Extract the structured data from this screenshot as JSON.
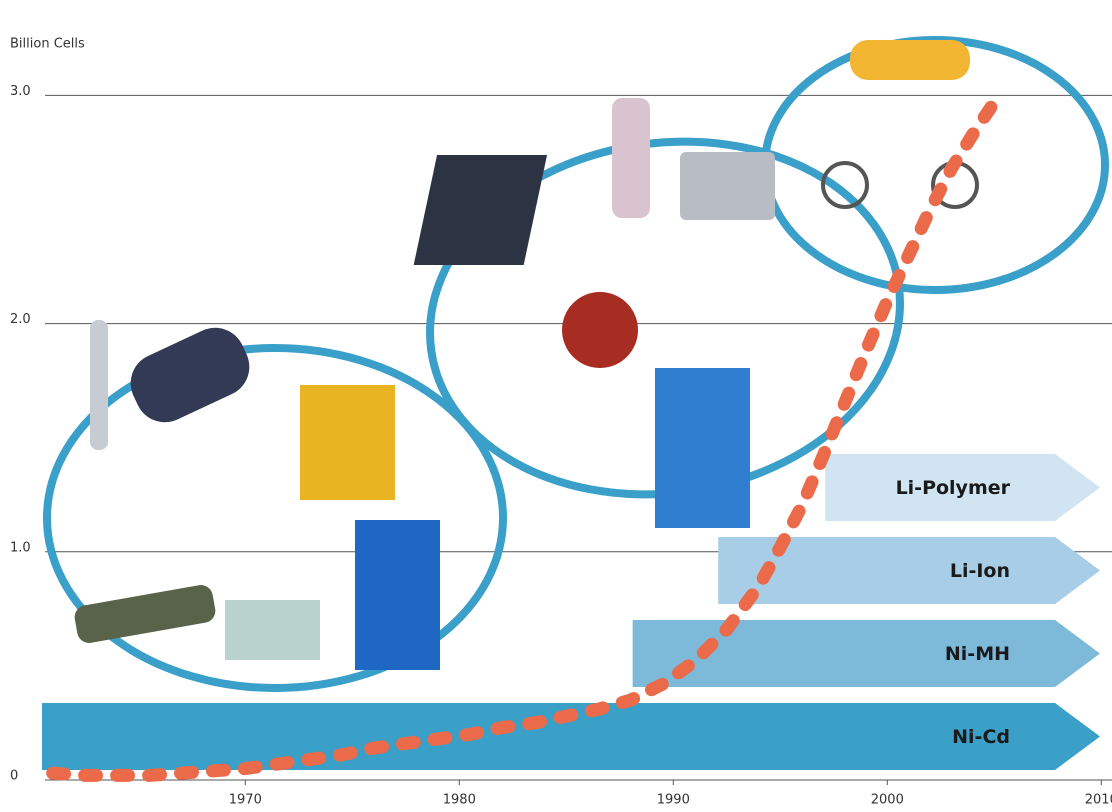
{
  "chart_data": {
    "type": "line",
    "y_label": "Billion Cells",
    "xlim": [
      1960.5,
      2010.5
    ],
    "xticks": [
      1970,
      1980,
      1990,
      2000,
      2010
    ],
    "ylim": [
      0,
      3.05
    ],
    "yticks": [
      0,
      {
        "value": 1,
        "label": "1.0"
      },
      {
        "value": 2,
        "label": "2.0"
      },
      {
        "value": 3,
        "label": "3.0"
      }
    ],
    "grid": true,
    "series": [
      {
        "color": "#ea6a4a",
        "x": [
          1961,
          1962.5,
          1964,
          1965.5,
          1967,
          1968.5,
          1970,
          1971.5,
          1973,
          1974.5,
          1976,
          1977.5,
          1979,
          1980.5,
          1982,
          1983.5,
          1985,
          1986.5,
          1988,
          1989.5,
          1991,
          1992.5,
          1994,
          1995,
          1996,
          1997,
          1998,
          1999,
          2000,
          2001,
          2002,
          2003,
          2004,
          2005
        ],
        "values": [
          0.03,
          0.02,
          0.02,
          0.02,
          0.03,
          0.04,
          0.05,
          0.07,
          0.09,
          0.11,
          0.14,
          0.16,
          0.18,
          0.2,
          0.23,
          0.25,
          0.28,
          0.31,
          0.35,
          0.42,
          0.52,
          0.66,
          0.85,
          1.02,
          1.2,
          1.42,
          1.65,
          1.88,
          2.1,
          2.3,
          2.5,
          2.68,
          2.83,
          2.97
        ]
      }
    ],
    "bands": [
      {
        "name": "Ni-Cd",
        "start": 1960.5,
        "color": "#3aa0c8"
      },
      {
        "name": "Ni-MH",
        "start": 1988.1,
        "color": "#7db9d9"
      },
      {
        "name": "Li-Ion",
        "start": 1992.1,
        "color": "#a8cde6"
      },
      {
        "name": "Li-Polymer",
        "start": 1997.1,
        "color": "#d0e4f1"
      }
    ]
  }
}
